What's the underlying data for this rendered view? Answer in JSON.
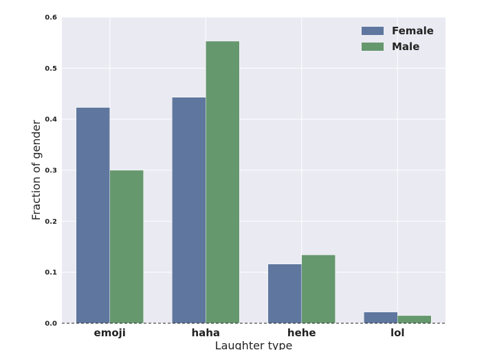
{
  "chart_data": {
    "type": "bar",
    "title": "",
    "xlabel": "Laughter type",
    "ylabel": "Fraction of gender",
    "categories": [
      "emoji",
      "haha",
      "hehe",
      "lol"
    ],
    "series": [
      {
        "name": "Female",
        "color": "#5f779e",
        "values": [
          0.423,
          0.443,
          0.116,
          0.022
        ]
      },
      {
        "name": "Male",
        "color": "#66986e",
        "values": [
          0.3,
          0.553,
          0.134,
          0.015
        ]
      }
    ],
    "ylim": [
      0,
      0.6
    ],
    "yticks": [
      "0.0",
      "0.1",
      "0.2",
      "0.3",
      "0.4",
      "0.5",
      "0.6"
    ],
    "grid": true,
    "baseline": "dashed",
    "legend_position": "top-right",
    "background_color": "#eaeaf2"
  }
}
